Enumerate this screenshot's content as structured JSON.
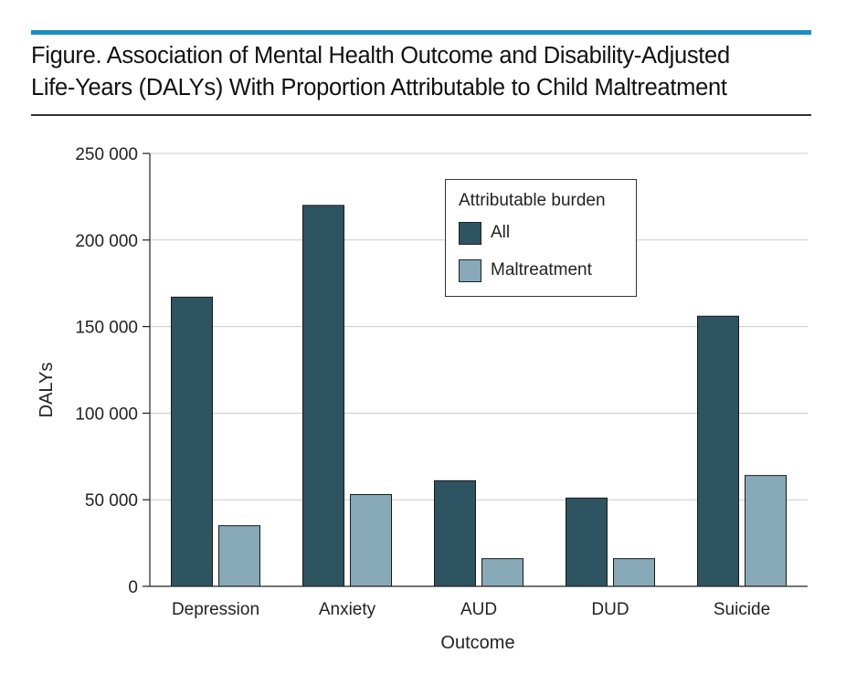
{
  "figure": {
    "title_line1": "Figure. Association of Mental Health Outcome and Disability-Adjusted",
    "title_line2": "Life-Years (DALYs) With Proportion Attributable to Child Maltreatment"
  },
  "legend": {
    "title": "Attributable burden",
    "items": [
      {
        "label": "All",
        "color": "#2e5361"
      },
      {
        "label": "Maltreatment",
        "color": "#87a9b8"
      }
    ]
  },
  "chart_data": {
    "type": "bar",
    "categories": [
      "Depression",
      "Anxiety",
      "AUD",
      "DUD",
      "Suicide"
    ],
    "series": [
      {
        "name": "All",
        "color": "#2e5361",
        "values": [
          167000,
          220000,
          61000,
          51000,
          156000
        ]
      },
      {
        "name": "Maltreatment",
        "color": "#87a9b8",
        "values": [
          35000,
          53000,
          16000,
          16000,
          64000
        ]
      }
    ],
    "xlabel": "Outcome",
    "ylabel": "DALYs",
    "ylim": [
      0,
      250000
    ],
    "yticks": [
      0,
      50000,
      100000,
      150000,
      200000,
      250000
    ],
    "ytick_labels": [
      "0",
      "50 000",
      "100 000",
      "150 000",
      "200 000",
      "250 000"
    ],
    "grid": true,
    "legend_position": "top-right"
  }
}
